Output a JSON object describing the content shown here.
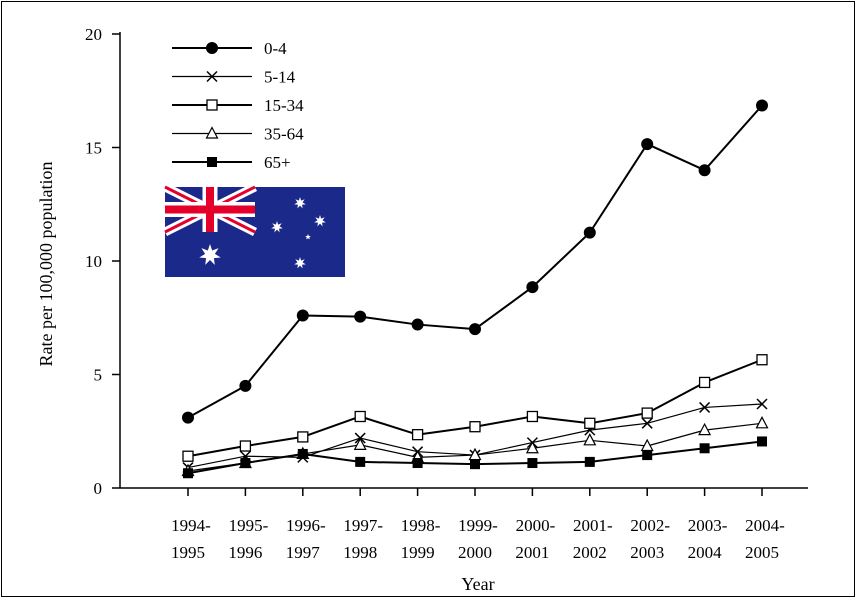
{
  "chart_data": {
    "type": "line",
    "title": "",
    "xlabel": "Year",
    "ylabel": "Rate per 100,000 population",
    "ylim": [
      0,
      20
    ],
    "yticks": [
      0,
      5,
      10,
      15,
      20
    ],
    "grid": false,
    "legend_position": "top-left",
    "categories": [
      [
        "1994-",
        "1995"
      ],
      [
        "1995-",
        "1996"
      ],
      [
        "1996-",
        "1997"
      ],
      [
        "1997-",
        "1998"
      ],
      [
        "1998-",
        "1999"
      ],
      [
        "1999-",
        "2000"
      ],
      [
        "2000-",
        "2001"
      ],
      [
        "2001-",
        "2002"
      ],
      [
        "2002-",
        "2003"
      ],
      [
        "2003-",
        "2004"
      ],
      [
        "2004-",
        "2005"
      ]
    ],
    "series": [
      {
        "name": "0-4",
        "marker": "filled-circle",
        "stroke_width": 2,
        "values": [
          3.1,
          4.5,
          7.6,
          7.55,
          7.2,
          7.0,
          8.85,
          11.25,
          15.15,
          14.0,
          16.85
        ]
      },
      {
        "name": "5-14",
        "marker": "x",
        "stroke_width": 1.2,
        "values": [
          0.9,
          1.4,
          1.35,
          2.2,
          1.6,
          1.45,
          2.0,
          2.55,
          2.85,
          3.55,
          3.7
        ]
      },
      {
        "name": "15-34",
        "marker": "open-square",
        "stroke_width": 2,
        "values": [
          1.4,
          1.85,
          2.25,
          3.15,
          2.35,
          2.7,
          3.15,
          2.85,
          3.3,
          4.65,
          5.65
        ]
      },
      {
        "name": "35-64",
        "marker": "open-triangle",
        "stroke_width": 1.2,
        "values": [
          0.75,
          1.1,
          1.5,
          1.9,
          1.35,
          1.45,
          1.75,
          2.1,
          1.85,
          2.55,
          2.85
        ]
      },
      {
        "name": "65+",
        "marker": "filled-square",
        "stroke_width": 2,
        "values": [
          0.65,
          1.1,
          1.5,
          1.15,
          1.1,
          1.05,
          1.1,
          1.15,
          1.45,
          1.75,
          2.05
        ]
      }
    ]
  },
  "flag": {
    "icon": "australian-flag",
    "field_color": "#1b2a8a",
    "red": "#e4002b",
    "white": "#ffffff"
  }
}
